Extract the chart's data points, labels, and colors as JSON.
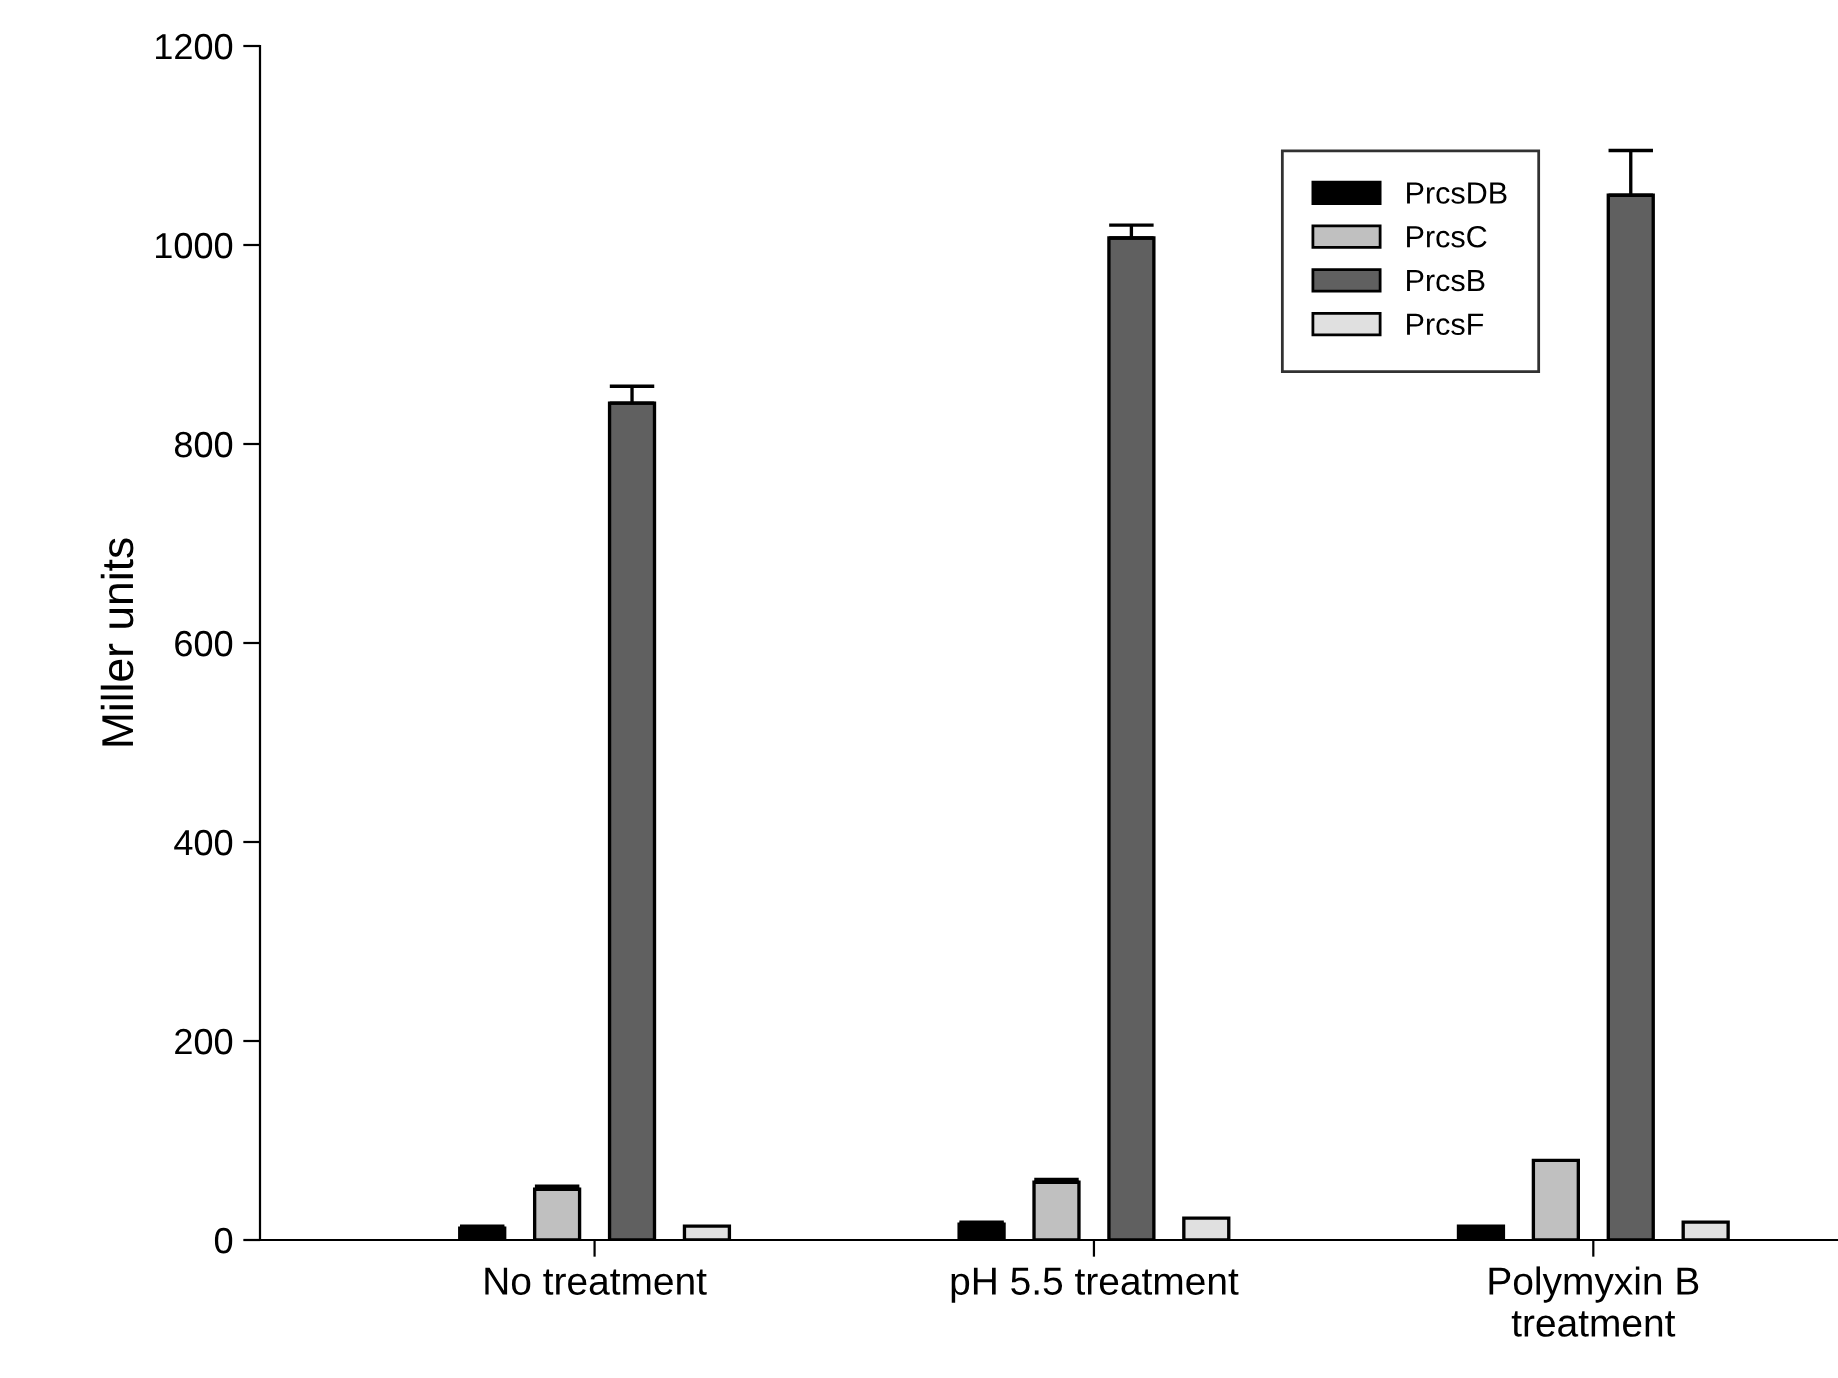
{
  "chart_data": {
    "type": "bar",
    "ylabel": "Miller units",
    "categories": [
      "No treatment",
      "pH 5.5 treatment",
      "Polymyxin B\ntreatment"
    ],
    "series": [
      {
        "name": "PrcsDB",
        "color": "#000000",
        "values": [
          12,
          16,
          14
        ],
        "errors": [
          2,
          2,
          null
        ]
      },
      {
        "name": "PrcsC",
        "color": "#c0c0c0",
        "values": [
          51,
          58,
          80
        ],
        "errors": [
          3,
          3,
          null
        ]
      },
      {
        "name": "PrcsB",
        "color": "#606060",
        "values": [
          841,
          1007,
          1050
        ],
        "errors": [
          17,
          13,
          45
        ]
      },
      {
        "name": "PrcsF",
        "color": "#e0e0e0",
        "values": [
          14,
          22,
          18
        ]
      }
    ],
    "ylim": [
      0,
      1200
    ],
    "yticks": [
      0,
      200,
      400,
      600,
      800,
      1000,
      1200
    ],
    "grid": false,
    "legend": "top right"
  }
}
